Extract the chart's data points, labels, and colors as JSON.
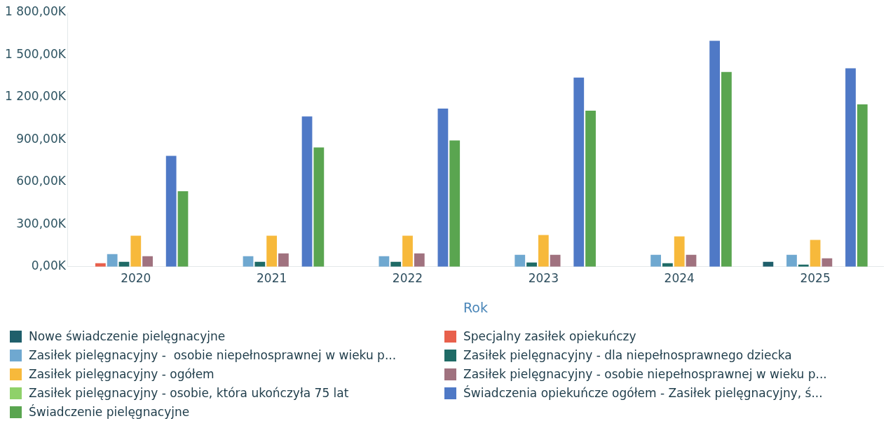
{
  "chart_data": {
    "type": "bar",
    "xlabel": "Rok",
    "categories": [
      "2020",
      "2021",
      "2022",
      "2023",
      "2024",
      "2025"
    ],
    "series": [
      {
        "name": "Nowe świadczenie pielęgnacyjne",
        "color": "#1f5f6b",
        "values": [
          null,
          null,
          null,
          null,
          null,
          35000
        ]
      },
      {
        "name": "Specjalny zasiłek opiekuńczy",
        "color": "#e8604c",
        "values": [
          25000,
          null,
          null,
          null,
          null,
          null
        ]
      },
      {
        "name": "Zasiłek pielęgnacyjny -  osobie niepełnosprawnej w wieku p...",
        "color": "#6fa8d0",
        "values": [
          90000,
          75000,
          75000,
          85000,
          85000,
          85000
        ]
      },
      {
        "name": "Zasiłek pielęgnacyjny - dla niepełnosprawnego dziecka",
        "color": "#1f6b66",
        "values": [
          35000,
          35000,
          35000,
          30000,
          25000,
          15000
        ]
      },
      {
        "name": "Zasiłek pielęgnacyjny - ogółem",
        "color": "#f7b93b",
        "values": [
          220000,
          220000,
          220000,
          225000,
          215000,
          190000
        ]
      },
      {
        "name": "Zasiłek pielęgnacyjny - osobie niepełnosprawnej w wieku p...",
        "color": "#a0727f",
        "values": [
          75000,
          95000,
          95000,
          85000,
          85000,
          60000
        ]
      },
      {
        "name": "Zasiłek pielęgnacyjny - osobie, która ukończyła 75 lat",
        "color": "#8fd16a",
        "values": [
          null,
          null,
          null,
          null,
          null,
          null
        ]
      },
      {
        "name": "Świadczenia opiekuńcze ogółem - Zasiłek pielęgnacyjny, ś...",
        "color": "#4f79c6",
        "values": [
          785000,
          1065000,
          1120000,
          1340000,
          1600000,
          1405000
        ]
      },
      {
        "name": "Świadczenie pielęgnacyjne",
        "color": "#5aa550",
        "values": [
          535000,
          845000,
          895000,
          1105000,
          1380000,
          1150000
        ]
      }
    ],
    "ylim": [
      0,
      1800000
    ],
    "yticks": [
      {
        "value": 0,
        "label": "0,00K"
      },
      {
        "value": 300000,
        "label": "300,00K"
      },
      {
        "value": 600000,
        "label": "600,00K"
      },
      {
        "value": 900000,
        "label": "900,00K"
      },
      {
        "value": 1200000,
        "label": "1 200,00K"
      },
      {
        "value": 1500000,
        "label": "1 500,00K"
      },
      {
        "value": 1800000,
        "label": "1 800,00K"
      }
    ],
    "grid": false,
    "legend": "bottom"
  }
}
